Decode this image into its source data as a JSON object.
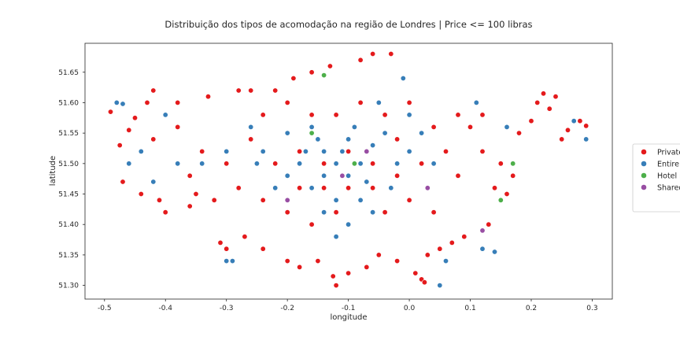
{
  "chart_data": {
    "type": "scatter",
    "title": "Distribuição dos tipos de acomodação na região de Londres | Price <= 100 libras",
    "xlabel": "longitude",
    "ylabel": "latitude",
    "xlim": [
      -0.532,
      0.333
    ],
    "ylim": [
      51.2775,
      51.6975
    ],
    "x_ticks": [
      "-0.5",
      "-0.4",
      "-0.3",
      "-0.2",
      "-0.1",
      "0.0",
      "0.1",
      "0.2",
      "0.3"
    ],
    "y_ticks": [
      "51.30",
      "51.35",
      "51.40",
      "51.45",
      "51.50",
      "51.55",
      "51.60",
      "51.65"
    ],
    "grid": false,
    "legend_position": "right",
    "legend_labels": [
      "Private",
      "Entire",
      "Hotel r",
      "Shared"
    ],
    "series": [
      {
        "name": "Private",
        "color": "#e41a1c",
        "points": [
          [
            -0.49,
            51.585
          ],
          [
            -0.47,
            51.47
          ],
          [
            -0.475,
            51.53
          ],
          [
            -0.46,
            51.555
          ],
          [
            -0.45,
            51.575
          ],
          [
            -0.44,
            51.45
          ],
          [
            -0.43,
            51.6
          ],
          [
            -0.42,
            51.62
          ],
          [
            -0.41,
            51.44
          ],
          [
            -0.4,
            51.42
          ],
          [
            -0.38,
            51.6
          ],
          [
            -0.36,
            51.43
          ],
          [
            -0.35,
            51.45
          ],
          [
            -0.33,
            51.61
          ],
          [
            -0.31,
            51.37
          ],
          [
            -0.3,
            51.36
          ],
          [
            -0.28,
            51.62
          ],
          [
            -0.27,
            51.38
          ],
          [
            -0.26,
            51.62
          ],
          [
            -0.24,
            51.36
          ],
          [
            -0.22,
            51.62
          ],
          [
            -0.2,
            51.34
          ],
          [
            -0.19,
            51.64
          ],
          [
            -0.18,
            51.33
          ],
          [
            -0.16,
            51.65
          ],
          [
            -0.15,
            51.34
          ],
          [
            -0.13,
            51.66
          ],
          [
            -0.125,
            51.315
          ],
          [
            -0.12,
            51.3
          ],
          [
            -0.1,
            51.32
          ],
          [
            -0.08,
            51.67
          ],
          [
            -0.07,
            51.33
          ],
          [
            -0.06,
            51.68
          ],
          [
            -0.05,
            51.35
          ],
          [
            -0.03,
            51.68
          ],
          [
            -0.02,
            51.34
          ],
          [
            0.01,
            51.32
          ],
          [
            0.02,
            51.31
          ],
          [
            0.025,
            51.305
          ],
          [
            0.03,
            51.35
          ],
          [
            0.05,
            51.36
          ],
          [
            0.07,
            51.37
          ],
          [
            0.09,
            51.38
          ],
          [
            0.1,
            51.56
          ],
          [
            0.12,
            51.58
          ],
          [
            0.13,
            51.4
          ],
          [
            0.15,
            51.5
          ],
          [
            0.16,
            51.45
          ],
          [
            0.17,
            51.48
          ],
          [
            0.18,
            51.55
          ],
          [
            0.2,
            51.57
          ],
          [
            0.21,
            51.6
          ],
          [
            0.22,
            51.615
          ],
          [
            0.23,
            51.59
          ],
          [
            0.24,
            51.61
          ],
          [
            0.25,
            51.54
          ],
          [
            0.26,
            51.555
          ],
          [
            0.28,
            51.57
          ],
          [
            0.29,
            51.562
          ],
          [
            -0.22,
            51.5
          ],
          [
            -0.18,
            51.52
          ],
          [
            -0.14,
            51.5
          ],
          [
            -0.1,
            51.52
          ],
          [
            -0.06,
            51.5
          ],
          [
            -0.02,
            51.48
          ],
          [
            0.02,
            51.5
          ],
          [
            0.06,
            51.52
          ],
          [
            0.08,
            51.48
          ],
          [
            -0.26,
            51.54
          ],
          [
            -0.3,
            51.5
          ],
          [
            -0.34,
            51.52
          ],
          [
            -0.38,
            51.56
          ],
          [
            -0.42,
            51.54
          ],
          [
            -0.24,
            51.44
          ],
          [
            -0.2,
            51.42
          ],
          [
            -0.16,
            51.4
          ],
          [
            -0.12,
            51.42
          ],
          [
            -0.08,
            51.44
          ],
          [
            -0.04,
            51.42
          ],
          [
            0.0,
            51.44
          ],
          [
            0.04,
            51.42
          ],
          [
            -0.12,
            51.58
          ],
          [
            -0.08,
            51.6
          ],
          [
            -0.04,
            51.58
          ],
          [
            0.0,
            51.6
          ],
          [
            -0.16,
            51.58
          ],
          [
            -0.2,
            51.6
          ],
          [
            -0.24,
            51.58
          ],
          [
            0.04,
            51.56
          ],
          [
            0.08,
            51.58
          ],
          [
            -0.1,
            51.46
          ],
          [
            -0.14,
            51.46
          ],
          [
            -0.18,
            51.46
          ],
          [
            -0.06,
            51.46
          ],
          [
            -0.02,
            51.54
          ],
          [
            0.12,
            51.52
          ],
          [
            0.14,
            51.46
          ],
          [
            -0.28,
            51.46
          ],
          [
            -0.32,
            51.44
          ],
          [
            -0.36,
            51.48
          ]
        ]
      },
      {
        "name": "Entire",
        "color": "#377eb8",
        "points": [
          [
            -0.48,
            51.6
          ],
          [
            -0.47,
            51.598
          ],
          [
            -0.46,
            51.5
          ],
          [
            -0.42,
            51.47
          ],
          [
            -0.3,
            51.34
          ],
          [
            -0.29,
            51.34
          ],
          [
            -0.25,
            51.5
          ],
          [
            -0.2,
            51.55
          ],
          [
            -0.18,
            51.5
          ],
          [
            -0.16,
            51.56
          ],
          [
            -0.14,
            51.52
          ],
          [
            -0.12,
            51.5
          ],
          [
            -0.1,
            51.54
          ],
          [
            -0.08,
            51.5
          ],
          [
            -0.06,
            51.53
          ],
          [
            -0.04,
            51.55
          ],
          [
            -0.02,
            51.5
          ],
          [
            0.0,
            51.52
          ],
          [
            0.02,
            51.55
          ],
          [
            0.04,
            51.5
          ],
          [
            -0.14,
            51.48
          ],
          [
            -0.16,
            51.46
          ],
          [
            -0.2,
            51.48
          ],
          [
            -0.1,
            51.48
          ],
          [
            -0.08,
            51.44
          ],
          [
            -0.12,
            51.44
          ],
          [
            -0.06,
            51.42
          ],
          [
            -0.1,
            51.4
          ],
          [
            -0.12,
            51.38
          ],
          [
            -0.14,
            51.42
          ],
          [
            -0.22,
            51.46
          ],
          [
            -0.24,
            51.52
          ],
          [
            -0.26,
            51.56
          ],
          [
            -0.3,
            51.52
          ],
          [
            -0.34,
            51.5
          ],
          [
            -0.01,
            51.64
          ],
          [
            -0.05,
            51.6
          ],
          [
            0.0,
            51.58
          ],
          [
            0.05,
            51.3
          ],
          [
            0.06,
            51.34
          ],
          [
            0.12,
            51.36
          ],
          [
            0.14,
            51.355
          ],
          [
            0.27,
            51.57
          ],
          [
            0.29,
            51.54
          ],
          [
            0.11,
            51.6
          ],
          [
            0.16,
            51.56
          ],
          [
            -0.4,
            51.58
          ],
          [
            -0.44,
            51.52
          ],
          [
            -0.38,
            51.5
          ],
          [
            -0.09,
            51.56
          ],
          [
            -0.11,
            51.52
          ],
          [
            -0.07,
            51.47
          ],
          [
            -0.03,
            51.46
          ],
          [
            -0.15,
            51.54
          ],
          [
            -0.17,
            51.52
          ]
        ]
      },
      {
        "name": "Hotel r",
        "color": "#4daf4a",
        "points": [
          [
            -0.14,
            51.645
          ],
          [
            -0.16,
            51.55
          ],
          [
            -0.09,
            51.5
          ],
          [
            0.15,
            51.44
          ],
          [
            0.17,
            51.5
          ]
        ]
      },
      {
        "name": "Shared",
        "color": "#984ea3",
        "points": [
          [
            0.12,
            51.39
          ],
          [
            -0.11,
            51.48
          ],
          [
            -0.07,
            51.52
          ],
          [
            -0.2,
            51.44
          ],
          [
            0.03,
            51.46
          ]
        ]
      }
    ]
  }
}
